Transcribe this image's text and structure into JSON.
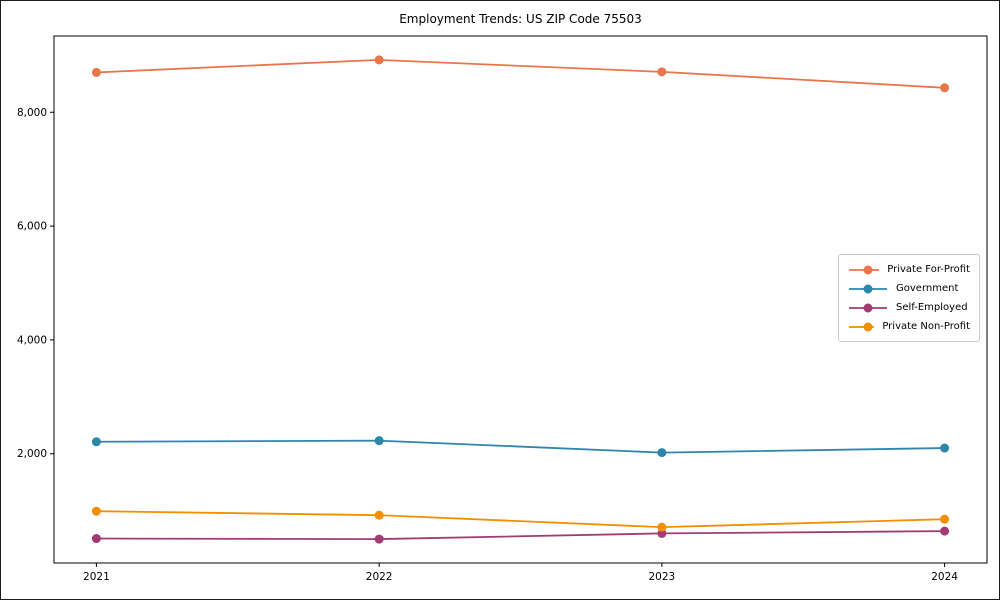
{
  "chart_data": {
    "type": "line",
    "title": "Employment Trends: US ZIP Code 75503",
    "x": [
      "2021",
      "2022",
      "2023",
      "2024"
    ],
    "series": [
      {
        "name": "Private For-Profit",
        "color": "#E8764A",
        "values": [
          8700,
          8920,
          8710,
          8430
        ]
      },
      {
        "name": "Government",
        "color": "#2E86AB",
        "values": [
          2210,
          2230,
          2020,
          2100
        ]
      },
      {
        "name": "Self-Employed",
        "color": "#A23B72",
        "values": [
          510,
          500,
          600,
          640
        ]
      },
      {
        "name": "Private Non-Profit",
        "color": "#F18F01",
        "values": [
          990,
          920,
          710,
          850
        ]
      }
    ],
    "yticks": [
      {
        "value": 2000,
        "label": "2,000"
      },
      {
        "value": 4000,
        "label": "4,000"
      },
      {
        "value": 6000,
        "label": "6,000"
      },
      {
        "value": 8000,
        "label": "8,000"
      }
    ],
    "ylim": [
      80,
      9340
    ],
    "xlabel": "",
    "ylabel": "",
    "grid": false,
    "legend_position": "center right",
    "frame_color": "#000000",
    "tick_label_color": "#000000"
  }
}
